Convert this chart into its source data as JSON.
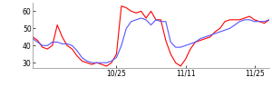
{
  "red_y": [
    45,
    43,
    39,
    38,
    40,
    52,
    45,
    40,
    38,
    34,
    31,
    30,
    29,
    30,
    29,
    28,
    30,
    35,
    63,
    62,
    60,
    59,
    60,
    56,
    60,
    55,
    55,
    43,
    35,
    30,
    28,
    32,
    38,
    42,
    43,
    44,
    45,
    48,
    50,
    54,
    55,
    55,
    55,
    56,
    57,
    55,
    54,
    53,
    55
  ],
  "blue_y": [
    44,
    42,
    40,
    40,
    42,
    42,
    41,
    41,
    40,
    37,
    33,
    31,
    30,
    30,
    30,
    30,
    31,
    33,
    40,
    50,
    54,
    55,
    56,
    55,
    52,
    55,
    54,
    54,
    42,
    39,
    39,
    40,
    41,
    42,
    44,
    45,
    46,
    47,
    48,
    49,
    50,
    52,
    54,
    55,
    55,
    54,
    54,
    54,
    55
  ],
  "x_tick_positions": [
    17,
    31,
    45
  ],
  "x_tick_labels": [
    "10/25",
    "11/11",
    "11/25"
  ],
  "ylim": [
    27,
    65
  ],
  "yticks": [
    30,
    40,
    50,
    60
  ],
  "red_color": "#ff0000",
  "blue_color": "#5555ff",
  "bg_color": "#ffffff",
  "linewidth": 0.8
}
